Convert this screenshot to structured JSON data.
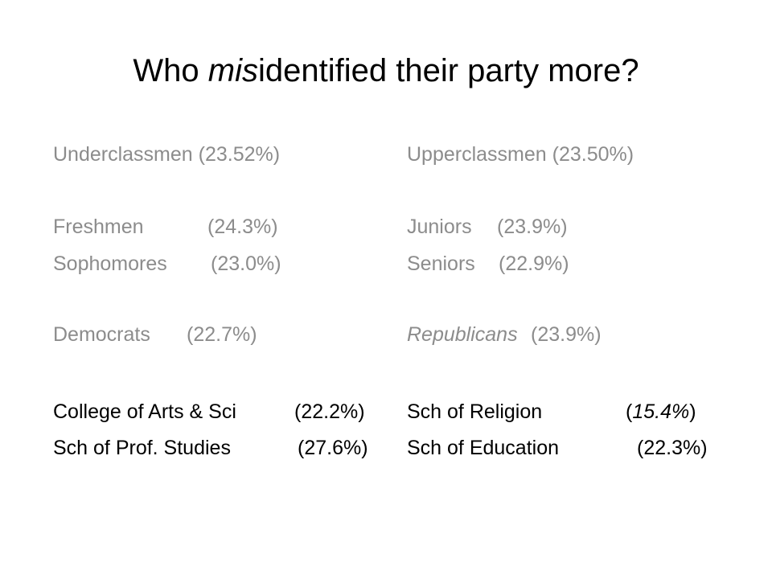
{
  "header": {
    "title": {
      "prefix": "Who",
      "emphasis": "mis",
      "suffix": "identified their party more?"
    }
  },
  "columns": [
    {
      "rows": [
        {
          "label": "Underclassmen",
          "value": "(23.52%)"
        },
        {
          "label": "Freshmen",
          "value": "(24.3%)"
        },
        {
          "label": "Sophomores",
          "value": "(23.0%)"
        },
        {
          "label": "Democrats",
          "value": "(22.7%)"
        },
        {
          "label": "College of Arts & Sci",
          "value": "(22.2%)"
        },
        {
          "label": "Sch of Prof. Studies",
          "value": "(27.6%)"
        }
      ]
    },
    {
      "rows": [
        {
          "label": "Upperclassmen",
          "value": "(23.50%)"
        },
        {
          "label": "Juniors",
          "value": "(23.9%)"
        },
        {
          "label": "Seniors",
          "value": "(22.9%)"
        },
        {
          "label": "Republicans",
          "value": "(23.9%)"
        },
        {
          "label": "Sch of Religion",
          "value": "15.4%"
        },
        {
          "label": "Sch of Education",
          "value": "(22.3%)"
        }
      ]
    }
  ]
}
